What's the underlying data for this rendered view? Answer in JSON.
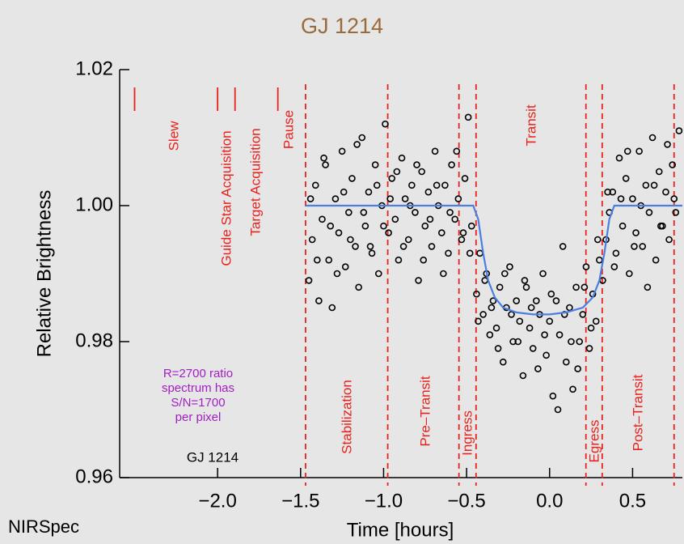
{
  "chart_data": {
    "type": "scatter",
    "title": "GJ 1214",
    "x_label": "Time [hours]",
    "y_label": "Relative Brightness",
    "xlim": [
      -2.59,
      0.8
    ],
    "ylim": [
      0.96,
      1.02
    ],
    "xticks": [
      {
        "value": -2.0,
        "label": "−2.0"
      },
      {
        "value": -1.5,
        "label": "−1.5"
      },
      {
        "value": -1.0,
        "label": "−1.0"
      },
      {
        "value": -0.5,
        "label": "−0.5"
      },
      {
        "value": 0,
        "label": "0.0"
      },
      0.5
    ],
    "yticks": [
      0.96,
      0.98,
      {
        "value": 1,
        "label": "1.00"
      },
      1.02
    ],
    "color": "#000000",
    "x": [
      -1.45,
      -1.43,
      -1.41,
      -1.39,
      -1.37,
      -1.35,
      -1.33,
      -1.31,
      -1.29,
      -1.27,
      -1.25,
      -1.23,
      -1.21,
      -1.19,
      -1.17,
      -1.15,
      -1.13,
      -1.11,
      -1.09,
      -1.07,
      -1.05,
      -1.03,
      -1.01,
      -0.99,
      -0.97,
      -0.95,
      -0.93,
      -0.91,
      -0.89,
      -0.87,
      -0.85,
      -0.83,
      -0.81,
      -0.79,
      -0.77,
      -0.75,
      -0.73,
      -0.71,
      -0.69,
      -0.67,
      -0.65,
      -0.63,
      -0.61,
      -0.59,
      -0.57,
      -0.55,
      -0.53,
      -0.51,
      -0.49,
      -0.47,
      -1.44,
      -1.4,
      -1.36,
      -1.32,
      -1.28,
      -1.24,
      -1.2,
      -1.16,
      -1.12,
      -1.08,
      -1.04,
      -1.0,
      -0.96,
      -0.92,
      -0.88,
      -0.84,
      -0.8,
      -0.76,
      -0.72,
      -0.68,
      -0.64,
      -0.6,
      -0.56,
      -0.52,
      -0.48,
      -0.44,
      -0.42,
      -0.4,
      -0.38,
      -0.36,
      -0.34,
      -0.32,
      -0.3,
      -0.28,
      -0.26,
      -0.24,
      -0.22,
      -0.2,
      -0.18,
      -0.16,
      -0.14,
      -0.12,
      -0.1,
      -0.08,
      -0.06,
      -0.04,
      -0.02,
      0.0,
      0.02,
      0.04,
      0.06,
      0.08,
      0.1,
      0.12,
      0.14,
      0.16,
      0.18,
      0.2,
      0.22,
      0.24,
      0.26,
      0.28,
      0.3,
      0.32,
      -0.43,
      -0.39,
      -0.35,
      -0.31,
      -0.27,
      -0.23,
      -0.19,
      -0.15,
      -0.11,
      -0.07,
      -0.03,
      0.01,
      0.05,
      0.09,
      0.13,
      0.17,
      0.21,
      0.25,
      0.29,
      0.34,
      0.36,
      0.38,
      0.4,
      0.42,
      0.44,
      0.46,
      0.48,
      0.5,
      0.52,
      0.54,
      0.56,
      0.58,
      0.6,
      0.62,
      0.64,
      0.66,
      0.68,
      0.7,
      0.72,
      0.74,
      0.76,
      0.78,
      0.35,
      0.39,
      0.43,
      0.47,
      0.51,
      0.55,
      0.59,
      0.63,
      0.67,
      0.71,
      0.75
    ],
    "y": [
      0.989,
      0.995,
      1.003,
      0.986,
      0.998,
      1.006,
      0.992,
      0.985,
      1.001,
      0.996,
      1.008,
      0.991,
      0.999,
      1.004,
      0.994,
      0.988,
      1.01,
      0.997,
      1.002,
      0.993,
      1.006,
      0.99,
      1.0,
      1.012,
      0.996,
      1.004,
      0.998,
      0.992,
      1.007,
      1.001,
      0.995,
      1.003,
      0.999,
      0.989,
      1.005,
      0.997,
      1.002,
      0.994,
      1.008,
      1.0,
      0.996,
      1.003,
      0.993,
      1.006,
      0.998,
      1.001,
      0.995,
      1.004,
      1.013,
      0.997,
      1.001,
      0.992,
      1.007,
      0.997,
      0.99,
      1.002,
      0.995,
      1.009,
      0.999,
      0.994,
      1.003,
      0.997,
      1.001,
      1.005,
      0.994,
      1.0,
      1.006,
      0.992,
      0.998,
      1.003,
      0.99,
      0.999,
      1.008,
      0.996,
      0.993,
      0.987,
      0.993,
      0.984,
      0.99,
      0.981,
      0.986,
      0.982,
      0.988,
      0.977,
      0.985,
      0.991,
      0.98,
      0.986,
      0.983,
      0.975,
      0.988,
      0.982,
      0.979,
      0.986,
      0.984,
      0.99,
      0.978,
      0.983,
      0.972,
      0.986,
      0.981,
      0.994,
      0.977,
      0.985,
      0.973,
      0.988,
      0.98,
      0.984,
      0.991,
      0.979,
      0.987,
      0.983,
      0.992,
      0.989,
      0.983,
      0.989,
      0.985,
      0.979,
      0.99,
      0.984,
      0.98,
      0.989,
      0.985,
      0.976,
      0.981,
      0.987,
      0.97,
      0.984,
      0.98,
      0.976,
      0.988,
      0.982,
      0.995,
      0.995,
      0.999,
      1.002,
      0.993,
      1.007,
      0.997,
      1.004,
      0.99,
      1.001,
      0.996,
      1.008,
      0.994,
      1.003,
      0.999,
      1.01,
      0.992,
      1.005,
      0.997,
      1.002,
      0.995,
      1.006,
      0.999,
      1.011,
      1.002,
      0.991,
      1.001,
      1.008,
      0.994,
      1.0,
      0.988,
      1.003,
      0.997,
      1.009,
      1.001
    ],
    "model": {
      "color": "#4a7fe0",
      "x": [
        -1.47,
        -0.46,
        -0.43,
        -0.4,
        -0.37,
        -0.33,
        -0.28,
        -0.2,
        -0.1,
        0,
        0.1,
        0.2,
        0.26,
        0.3,
        0.33,
        0.36,
        0.39,
        0.8
      ],
      "y": [
        1.0,
        1.0,
        0.998,
        0.993,
        0.989,
        0.9865,
        0.985,
        0.9843,
        0.984,
        0.984,
        0.9843,
        0.985,
        0.9865,
        0.989,
        0.993,
        0.998,
        1.0,
        1.0
      ]
    },
    "event_color": "#e8221c",
    "event_marks": [
      -2.5,
      -2.0,
      -1.895,
      -1.637
    ],
    "phase_lines": [
      -1.47,
      -0.975,
      -0.546,
      -0.443,
      0.219,
      0.317,
      0.75
    ],
    "event_labels": [
      "Slew",
      "Guide Star Acquisition",
      "Target Acquisition",
      "Pause",
      "Transit",
      "Stabilization",
      "Pre–Transit",
      "Ingress",
      "Egress",
      "Post–Transit"
    ],
    "annotation_color": "#a020c0",
    "annotation": [
      "R=2700 ratio",
      "spectrum has",
      "S/N=1700",
      "per pixel"
    ],
    "target_label": "GJ 1214",
    "instrument": "NIRSpec"
  }
}
